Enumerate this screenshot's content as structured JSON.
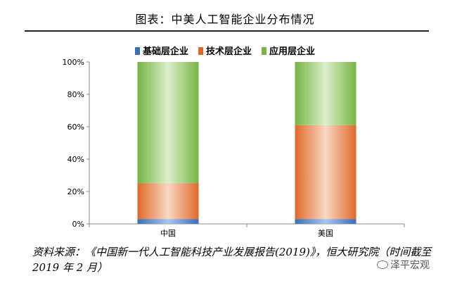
{
  "chart_data": {
    "type": "bar",
    "stacked": true,
    "normalized": true,
    "title": "图表：中美人工智能企业分布情况",
    "categories": [
      "中国",
      "美国"
    ],
    "series": [
      {
        "name": "基础层企业",
        "values": [
          3,
          3
        ],
        "color": "#3a6fb8"
      },
      {
        "name": "技术层企业",
        "values": [
          22,
          58
        ],
        "color": "#e0692a"
      },
      {
        "name": "应用层企业",
        "values": [
          75,
          39
        ],
        "color": "#77b445"
      }
    ],
    "yticks": [
      "0%",
      "20%",
      "40%",
      "60%",
      "80%",
      "100%"
    ],
    "ylim": [
      0,
      100
    ],
    "legend_position": "top",
    "grid": false
  },
  "source": "资料来源：《中国新一代人工智能科技产业发展报告(2019)》，恒大研究院（时间截至 2019 年 2 月）",
  "watermark": {
    "text": "泽平宏观",
    "icon": "wechat-icon"
  }
}
